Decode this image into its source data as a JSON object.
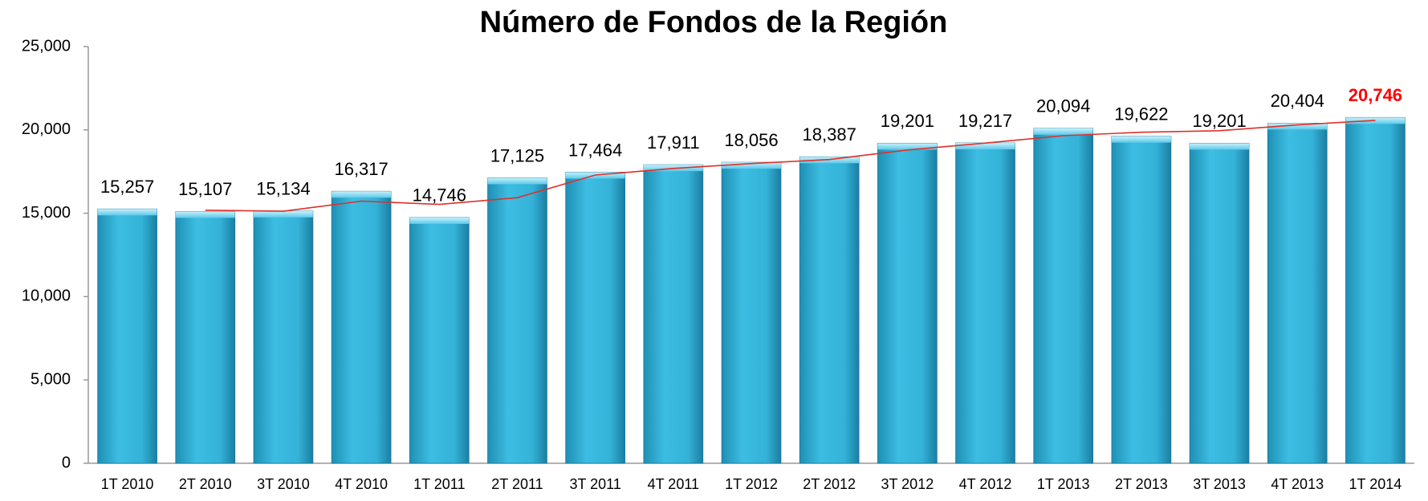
{
  "chart_data": {
    "type": "bar",
    "title": "Número de Fondos de la Región",
    "categories": [
      "1T 2010",
      "2T 2010",
      "3T 2010",
      "4T 2010",
      "1T 2011",
      "2T 2011",
      "3T 2011",
      "4T 2011",
      "1T 2012",
      "2T 2012",
      "3T 2012",
      "4T 2012",
      "1T 2013",
      "2T 2013",
      "3T 2013",
      "4T 2013",
      "1T 2014"
    ],
    "values": [
      15257,
      15107,
      15134,
      16317,
      14746,
      17125,
      17464,
      17911,
      18056,
      18387,
      19201,
      19217,
      20094,
      19622,
      19201,
      20404,
      20746
    ],
    "value_labels": [
      "15,257",
      "15,107",
      "15,134",
      "16,317",
      "14,746",
      "17,125",
      "17,464",
      "17,911",
      "18,056",
      "18,387",
      "19,201",
      "19,217",
      "20,094",
      "19,622",
      "19,201",
      "20,404",
      "20,746"
    ],
    "color": "#35b4dc",
    "highlight_index": 16,
    "highlight_color": "#ff0000",
    "trend_values": [
      null,
      15182,
      15120,
      15725,
      15531,
      15935,
      17294,
      17687,
      17983,
      18221,
      18794,
      19209,
      19655,
      19858,
      19950,
      20300,
      20575
    ],
    "trend_color": "#e0302a",
    "ylim": [
      0,
      25000
    ],
    "yticks": [
      0,
      {
        "value": 5000,
        "label": "5,000"
      },
      {
        "value": 10000,
        "label": "10,000"
      },
      {
        "value": 15000,
        "label": "15,000"
      },
      {
        "value": 20000,
        "label": "20,000"
      },
      {
        "value": 25000,
        "label": "25,000"
      }
    ],
    "grid": false
  }
}
